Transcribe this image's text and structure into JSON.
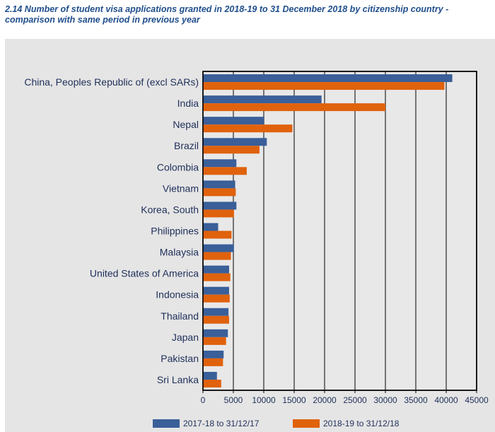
{
  "chart_data": {
    "type": "bar",
    "orientation": "horizontal",
    "title": "2.14 Number of student visa applications granted in 2018-19 to 31 December 2018 by citizenship country - comparison with same period in previous year",
    "categories": [
      "China, Peoples Republic of (excl SARs)",
      "India",
      "Nepal",
      "Brazil",
      "Colombia",
      "Vietnam",
      "Korea, South",
      "Philippines",
      "Malaysia",
      "United States of America",
      "Indonesia",
      "Thailand",
      "Japan",
      "Pakistan",
      "Sri Lanka"
    ],
    "series": [
      {
        "name": "2017-18 to 31/12/17",
        "color": "#3a5f99",
        "values": [
          41000,
          19500,
          10000,
          10500,
          5500,
          5300,
          5500,
          2500,
          5100,
          4300,
          4300,
          4200,
          4100,
          3400,
          2300
        ]
      },
      {
        "name": "2018-19 to 31/12/18",
        "color": "#e0620d",
        "values": [
          39700,
          30000,
          14700,
          9300,
          7200,
          5400,
          5100,
          4700,
          4600,
          4500,
          4400,
          4300,
          3800,
          3300,
          3000
        ]
      }
    ],
    "xlim": [
      0,
      45000
    ],
    "xticks": [
      "0",
      "5000",
      "10000",
      "15000",
      "20000",
      "25000",
      "30000",
      "35000",
      "40000",
      "45000"
    ],
    "grid": true,
    "legend_position": "bottom"
  }
}
